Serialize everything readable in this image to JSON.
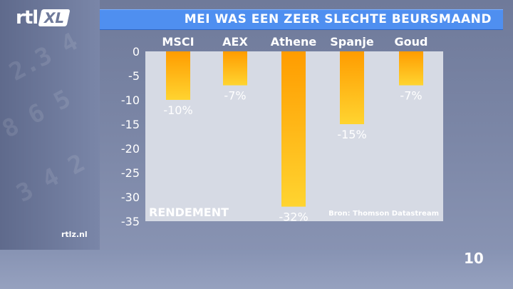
{
  "header": {
    "logo_text": "rtl",
    "logo_badge": "XL",
    "title": "MEI WAS EEN ZEER SLECHTE BEURSMAAND"
  },
  "footer": {
    "site": "rtlz.nl",
    "page_number": "10"
  },
  "colors": {
    "bar_top": "#ff9c00",
    "bar_bottom": "#ffd430",
    "title_bar": "#4f8ff0",
    "plot_background": "#d6dae4"
  },
  "chart_data": {
    "type": "bar",
    "title": "MEI WAS EEN ZEER SLECHTE BEURSMAAND",
    "ylabel": "RENDEMENT",
    "source": "Bron: Thomson Datastream",
    "categories": [
      "MSCI",
      "AEX",
      "Athene",
      "Spanje",
      "Goud"
    ],
    "values": [
      -10,
      -7,
      -32,
      -15,
      -7
    ],
    "value_labels": [
      "-10%",
      "-7%",
      "-32%",
      "-15%",
      "-7%"
    ],
    "ylim": [
      -35,
      0
    ],
    "yticks": [
      0,
      -5,
      -10,
      -15,
      -20,
      -25,
      -30,
      -35
    ],
    "ytick_labels": [
      "0",
      "-5",
      "-10",
      "-15",
      "-20",
      "-25",
      "-30",
      "-35"
    ],
    "grid": false,
    "legend": "none"
  }
}
